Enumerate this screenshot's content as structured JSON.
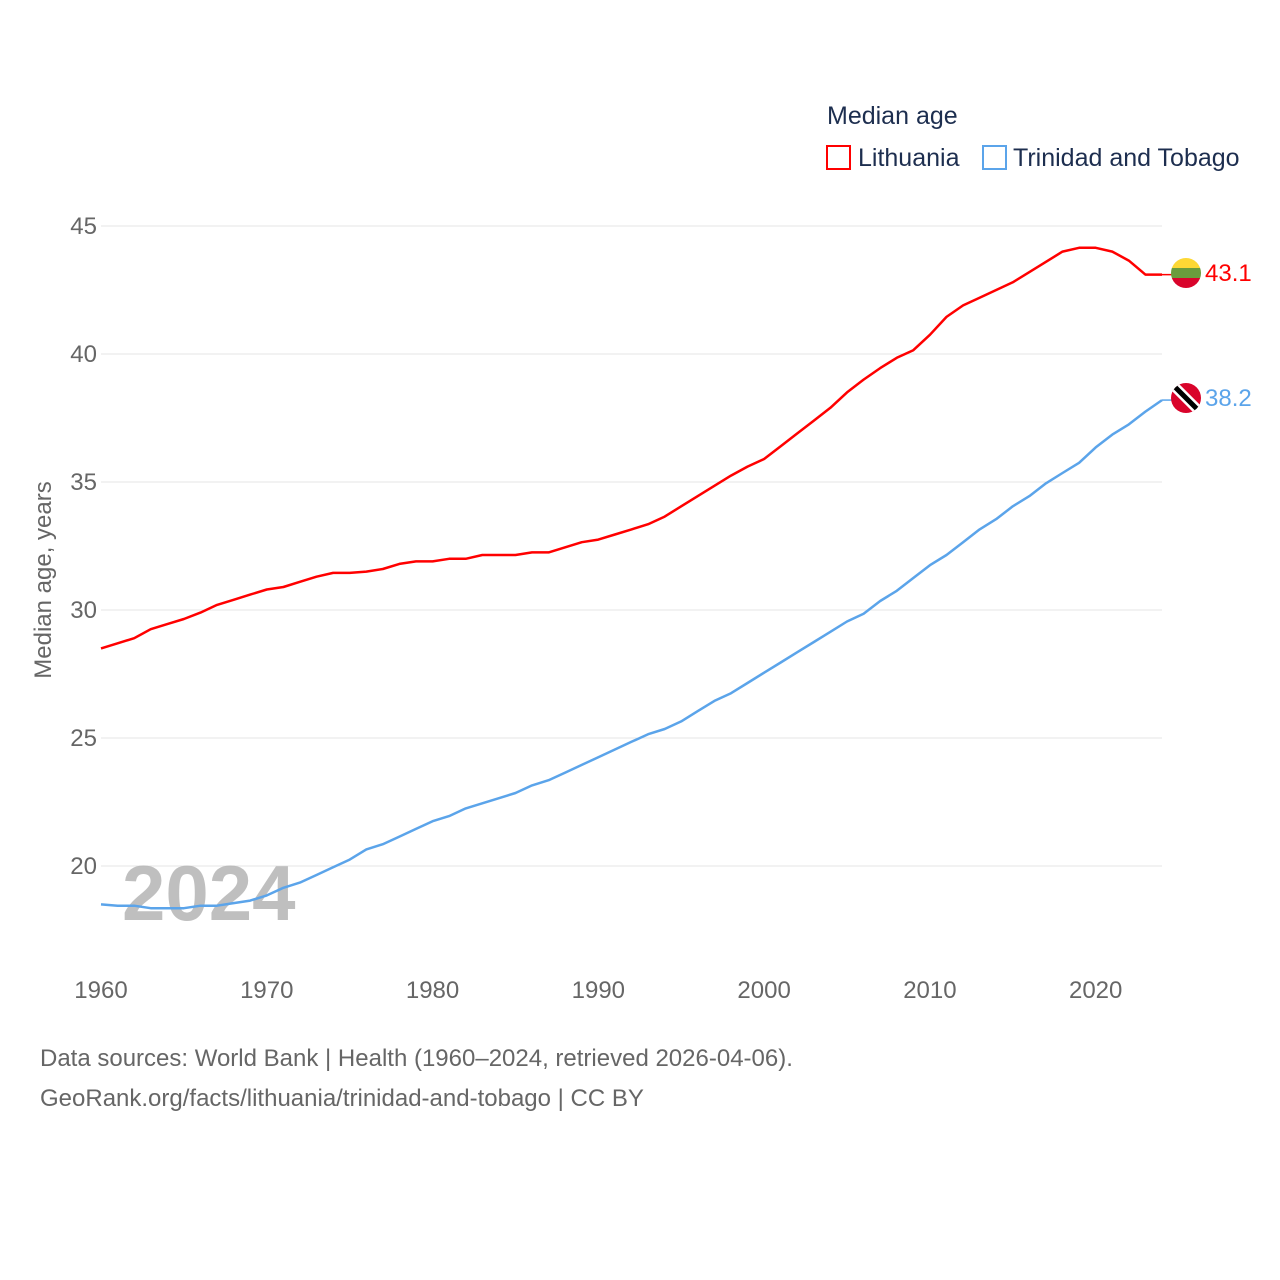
{
  "chart_data": {
    "type": "line",
    "title": "",
    "xlabel": "",
    "ylabel": "Median age, years",
    "xlim": [
      1960,
      2024
    ],
    "ylim": [
      17.5,
      45
    ],
    "yticks": [
      20,
      25,
      30,
      35,
      40,
      45
    ],
    "xticks": [
      1960,
      1970,
      1980,
      1990,
      2000,
      2010,
      2020
    ],
    "grid": true,
    "legend": {
      "title": "Median age",
      "placement": "top-right"
    },
    "watermark_year": "2024",
    "x": [
      1960,
      1961,
      1962,
      1963,
      1964,
      1965,
      1966,
      1967,
      1968,
      1969,
      1970,
      1971,
      1972,
      1973,
      1974,
      1975,
      1976,
      1977,
      1978,
      1979,
      1980,
      1981,
      1982,
      1983,
      1984,
      1985,
      1986,
      1987,
      1988,
      1989,
      1990,
      1991,
      1992,
      1993,
      1994,
      1995,
      1996,
      1997,
      1998,
      1999,
      2000,
      2001,
      2002,
      2003,
      2004,
      2005,
      2006,
      2007,
      2008,
      2009,
      2010,
      2011,
      2012,
      2013,
      2014,
      2015,
      2016,
      2017,
      2018,
      2019,
      2020,
      2021,
      2022,
      2023,
      2024
    ],
    "series": [
      {
        "name": "Lithuania",
        "color": "#ff0000",
        "flag": "lithuania-flag",
        "end_label": "43.1",
        "values": [
          28.5,
          28.7,
          28.9,
          29.25,
          29.45,
          29.65,
          29.9,
          30.2,
          30.4,
          30.6,
          30.8,
          30.9,
          31.1,
          31.3,
          31.45,
          31.45,
          31.5,
          31.6,
          31.8,
          31.9,
          31.9,
          32.0,
          32.0,
          32.15,
          32.15,
          32.15,
          32.25,
          32.25,
          32.45,
          32.65,
          32.75,
          32.95,
          33.15,
          33.35,
          33.65,
          34.05,
          34.45,
          34.85,
          35.25,
          35.6,
          35.9,
          36.4,
          36.9,
          37.4,
          37.9,
          38.5,
          39.0,
          39.45,
          39.85,
          40.15,
          40.75,
          41.45,
          41.9,
          42.2,
          42.5,
          42.8,
          43.2,
          43.6,
          44.0,
          44.15,
          44.15,
          44.0,
          43.65,
          43.1,
          43.1
        ]
      },
      {
        "name": "Trinidad and Tobago",
        "color": "#5ba4ea",
        "flag": "trinidad-and-tobago-flag",
        "end_label": "38.2",
        "values": [
          18.5,
          18.45,
          18.45,
          18.35,
          18.35,
          18.35,
          18.45,
          18.45,
          18.55,
          18.65,
          18.85,
          19.15,
          19.35,
          19.65,
          19.95,
          20.25,
          20.65,
          20.85,
          21.15,
          21.45,
          21.75,
          21.95,
          22.25,
          22.45,
          22.65,
          22.85,
          23.15,
          23.35,
          23.65,
          23.95,
          24.25,
          24.55,
          24.85,
          25.15,
          25.35,
          25.65,
          26.05,
          26.45,
          26.75,
          27.15,
          27.55,
          27.95,
          28.35,
          28.75,
          29.15,
          29.55,
          29.85,
          30.35,
          30.75,
          31.25,
          31.75,
          32.15,
          32.65,
          33.15,
          33.55,
          34.05,
          34.45,
          34.95,
          35.35,
          35.75,
          36.35,
          36.85,
          37.25,
          37.75,
          38.2
        ]
      }
    ]
  },
  "footer": {
    "line1": "Data sources: World Bank | Health (1960–2024, retrieved 2026-04-06).",
    "line2": "GeoRank.org/facts/lithuania/trinidad-and-tobago | CC BY"
  }
}
